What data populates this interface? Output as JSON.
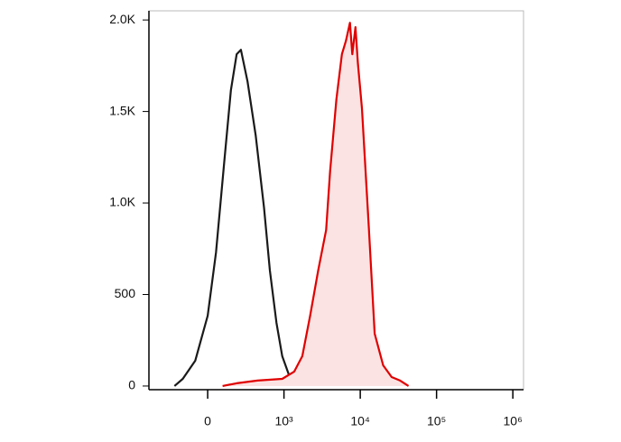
{
  "chart_data": {
    "type": "histogram-overlay",
    "ylim": [
      -20,
      2050
    ],
    "yticks": [
      0,
      500,
      {
        "value": 1000,
        "label": "1.0K"
      },
      {
        "value": 1500,
        "label": "1.5K"
      },
      {
        "value": 2000,
        "label": "2.0K"
      }
    ],
    "xlim": [
      -770,
      1380000
    ],
    "xscale": "biexponential",
    "xticks": [
      0,
      {
        "value": 1000,
        "label": "10³"
      },
      {
        "value": 10000,
        "label": "10⁴"
      },
      {
        "value": 100000,
        "label": "10⁵"
      },
      {
        "value": 1000000,
        "label": "10⁶"
      }
    ],
    "series": [
      {
        "color": "#1a1a1a",
        "fill": "none",
        "x": [
          -435,
          -326,
          -163,
          0,
          109,
          217,
          304,
          380,
          435,
          522,
          630,
          739,
          815,
          902,
          978,
          1155,
          1303
        ],
        "values": [
          0,
          39,
          138,
          384,
          729,
          1222,
          1616,
          1813,
          1837,
          1665,
          1369,
          975,
          631,
          345,
          163,
          64,
          15
        ]
      },
      {
        "color": "#e00000",
        "fill": "#fbe3e3",
        "x": [
          196,
          380,
          652,
          978,
          1365,
          1738,
          2206,
          2807,
          3565,
          4018,
          4870,
          5754,
          6494,
          7328,
          7870,
          8660,
          9310,
          10524,
          12915,
          15450,
          19950,
          25760,
          33270,
          42970
        ],
        "values": [
          0,
          15,
          30,
          39,
          79,
          163,
          384,
          631,
          852,
          1172,
          1567,
          1813,
          1887,
          1985,
          1813,
          1961,
          1764,
          1517,
          877,
          286,
          113,
          49,
          30,
          0
        ]
      }
    ]
  }
}
